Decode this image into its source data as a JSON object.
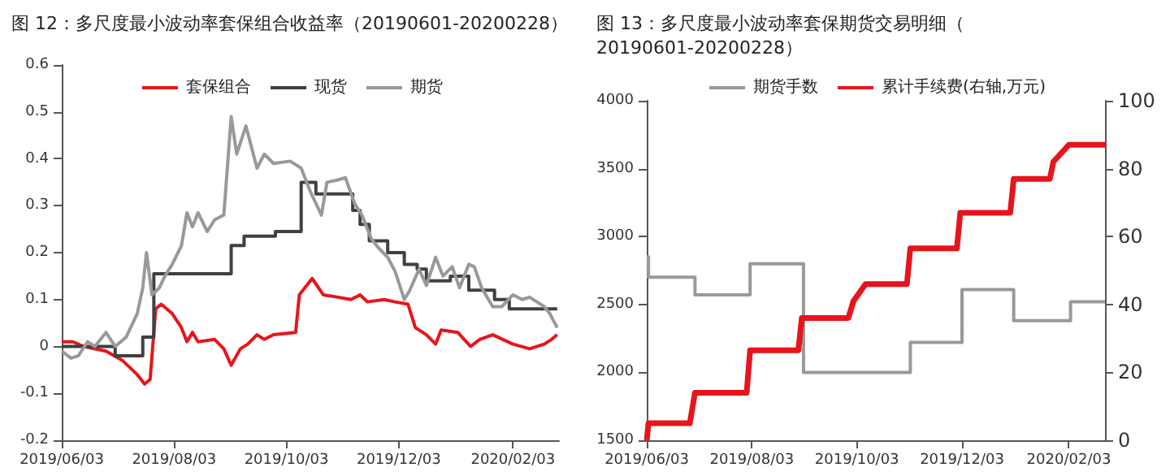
{
  "chart_data": [
    {
      "type": "line",
      "title": "图 12：多尺度最小波动率套保组合收益率（20190601-20200228）",
      "legend": "top",
      "grid": false,
      "marker": "none",
      "line_style": "solid",
      "xlim": [
        "2019-06-03",
        "2020-02-28"
      ],
      "xticks": [
        {
          "value": "2019-06-03",
          "label": "2019/06/03"
        },
        {
          "value": "2019-08-03",
          "label": "2019/08/03"
        },
        {
          "value": "2019-10-03",
          "label": "2019/10/03"
        },
        {
          "value": "2019-12-03",
          "label": "2019/12/03"
        },
        {
          "value": "2020-02-03",
          "label": "2020/02/03"
        }
      ],
      "ylim": [
        -0.2,
        0.6
      ],
      "yticks": [
        -0.2,
        -0.1,
        0,
        0.1,
        0.2,
        0.3,
        0.4,
        0.5,
        0.6
      ],
      "series": [
        {
          "name": "套保组合",
          "color": "#e8141c",
          "x": [
            "2019-06-03",
            "2019-06-09",
            "2019-06-15",
            "2019-06-27",
            "2019-07-06",
            "2019-07-14",
            "2019-07-18",
            "2019-07-21",
            "2019-07-24",
            "2019-07-27",
            "2019-08-02",
            "2019-08-07",
            "2019-08-10",
            "2019-08-13",
            "2019-08-16",
            "2019-08-25",
            "2019-08-30",
            "2019-09-03",
            "2019-09-08",
            "2019-09-12",
            "2019-09-17",
            "2019-09-21",
            "2019-09-26",
            "2019-10-08",
            "2019-10-10",
            "2019-10-17",
            "2019-10-23",
            "2019-10-31",
            "2019-11-07",
            "2019-11-12",
            "2019-11-16",
            "2019-11-25",
            "2019-12-01",
            "2019-12-08",
            "2019-12-12",
            "2019-12-18",
            "2019-12-23",
            "2019-12-26",
            "2020-01-04",
            "2020-01-11",
            "2020-01-16",
            "2020-01-23",
            "2020-02-03",
            "2020-02-12",
            "2020-02-20",
            "2020-02-24",
            "2020-02-27"
          ],
          "values": [
            0.01,
            0.01,
            0,
            -0.01,
            -0.03,
            -0.06,
            -0.08,
            -0.07,
            0.08,
            0.09,
            0.07,
            0.04,
            0.01,
            0.03,
            0.01,
            0.015,
            -0.005,
            -0.04,
            -0.005,
            0.005,
            0.025,
            0.015,
            0.025,
            0.03,
            0.11,
            0.145,
            0.11,
            0.105,
            0.1,
            0.11,
            0.095,
            0.1,
            0.095,
            0.09,
            0.04,
            0.025,
            0.005,
            0.035,
            0.03,
            0,
            0.015,
            0.025,
            0.005,
            -0.005,
            0.005,
            0.015,
            0.025
          ]
        },
        {
          "name": "现货",
          "type": "step",
          "color": "#404040",
          "x": [
            "2019-06-03",
            "2019-07-02",
            "2019-07-17",
            "2019-07-23",
            "2019-09-03",
            "2019-09-10",
            "2019-09-27",
            "2019-10-11",
            "2019-10-19",
            "2019-11-08",
            "2019-11-12",
            "2019-11-17",
            "2019-11-27",
            "2019-12-06",
            "2019-12-13",
            "2019-12-18",
            "2019-12-31",
            "2020-01-10",
            "2020-01-24",
            "2020-02-01",
            "2020-02-27"
          ],
          "values": [
            0,
            -0.02,
            0.02,
            0.155,
            0.215,
            0.235,
            0.245,
            0.35,
            0.325,
            0.29,
            0.26,
            0.225,
            0.2,
            0.175,
            0.165,
            0.14,
            0.15,
            0.12,
            0.1,
            0.08,
            0.08
          ]
        },
        {
          "name": "期货",
          "color": "#999999",
          "x": [
            "2019-06-03",
            "2019-06-08",
            "2019-06-12",
            "2019-06-17",
            "2019-06-21",
            "2019-06-27",
            "2019-07-02",
            "2019-07-08",
            "2019-07-14",
            "2019-07-17",
            "2019-07-19",
            "2019-07-22",
            "2019-07-26",
            "2019-07-29",
            "2019-08-02",
            "2019-08-07",
            "2019-08-10",
            "2019-08-13",
            "2019-08-16",
            "2019-08-21",
            "2019-08-25",
            "2019-08-30",
            "2019-09-03",
            "2019-09-06",
            "2019-09-11",
            "2019-09-17",
            "2019-09-21",
            "2019-09-26",
            "2019-10-05",
            "2019-10-11",
            "2019-10-16",
            "2019-10-22",
            "2019-10-25",
            "2019-10-31",
            "2019-11-04",
            "2019-11-09",
            "2019-11-13",
            "2019-11-18",
            "2019-11-22",
            "2019-11-27",
            "2019-12-01",
            "2019-12-06",
            "2019-12-09",
            "2019-12-14",
            "2019-12-18",
            "2019-12-23",
            "2019-12-27",
            "2020-01-01",
            "2020-01-05",
            "2020-01-10",
            "2020-01-13",
            "2020-01-17",
            "2020-01-23",
            "2020-01-28",
            "2020-02-03",
            "2020-02-08",
            "2020-02-12",
            "2020-02-20",
            "2020-02-23",
            "2020-02-27"
          ],
          "values": [
            -0.01,
            -0.025,
            -0.02,
            0.01,
            0,
            0.03,
            0,
            0.02,
            0.07,
            0.125,
            0.2,
            0.11,
            0.125,
            0.15,
            0.175,
            0.215,
            0.285,
            0.255,
            0.285,
            0.245,
            0.27,
            0.28,
            0.49,
            0.41,
            0.47,
            0.38,
            0.41,
            0.39,
            0.395,
            0.38,
            0.33,
            0.28,
            0.35,
            0.355,
            0.36,
            0.305,
            0.28,
            0.23,
            0.21,
            0.19,
            0.16,
            0.1,
            0.12,
            0.165,
            0.13,
            0.19,
            0.15,
            0.17,
            0.125,
            0.175,
            0.17,
            0.125,
            0.085,
            0.085,
            0.11,
            0.1,
            0.105,
            0.085,
            0.07,
            0.04
          ]
        }
      ]
    },
    {
      "type": "line",
      "title": "图 13：多尺度最小波动率套保期货交易明细（20190601-20200228）",
      "legend": "top",
      "grid": false,
      "marker": "none",
      "line_style": "solid",
      "xlim": [
        "2019-06-03",
        "2020-02-24"
      ],
      "xticks": [
        {
          "value": "2019-06-03",
          "label": "2019/06/03"
        },
        {
          "value": "2019-08-03",
          "label": "2019/08/03"
        },
        {
          "value": "2019-10-03",
          "label": "2019/10/03"
        },
        {
          "value": "2019-12-03",
          "label": "2019/12/03"
        },
        {
          "value": "2020-02-03",
          "label": "2020/02/03"
        }
      ],
      "ylim": [
        1500,
        4000
      ],
      "yticks": [
        1500,
        2000,
        2500,
        3000,
        3500,
        4000
      ],
      "y2lim": [
        0,
        100
      ],
      "y2ticks": [
        0,
        20,
        40,
        60,
        80,
        100
      ],
      "series": [
        {
          "name": "期货手数",
          "type": "step",
          "color": "#999999",
          "x": [
            "2019-06-03",
            "2019-06-04",
            "2019-07-01",
            "2019-08-02",
            "2019-09-02",
            "2019-11-03",
            "2019-12-03",
            "2020-01-02",
            "2020-02-04",
            "2020-02-24"
          ],
          "values": [
            2850,
            2700,
            2570,
            2800,
            2000,
            2220,
            2610,
            2380,
            2520,
            2520
          ]
        },
        {
          "name": "累计手续费(右轴,万元)",
          "axis": "y2",
          "color": "#e8141c",
          "x": [
            "2019-06-03",
            "2019-06-04",
            "2019-06-28",
            "2019-07-01",
            "2019-07-31",
            "2019-08-02",
            "2019-08-30",
            "2019-09-01",
            "2019-09-28",
            "2019-10-01",
            "2019-10-08",
            "2019-11-01",
            "2019-11-03",
            "2019-11-30",
            "2019-12-02",
            "2019-12-31",
            "2020-01-02",
            "2020-01-23",
            "2020-01-25",
            "2020-02-03",
            "2020-02-24"
          ],
          "values": [
            0,
            5,
            5,
            14,
            14,
            26.5,
            26.5,
            36,
            36,
            41,
            46,
            46,
            56.5,
            56.5,
            67,
            67,
            77,
            77,
            82,
            87,
            87
          ]
        }
      ]
    }
  ]
}
